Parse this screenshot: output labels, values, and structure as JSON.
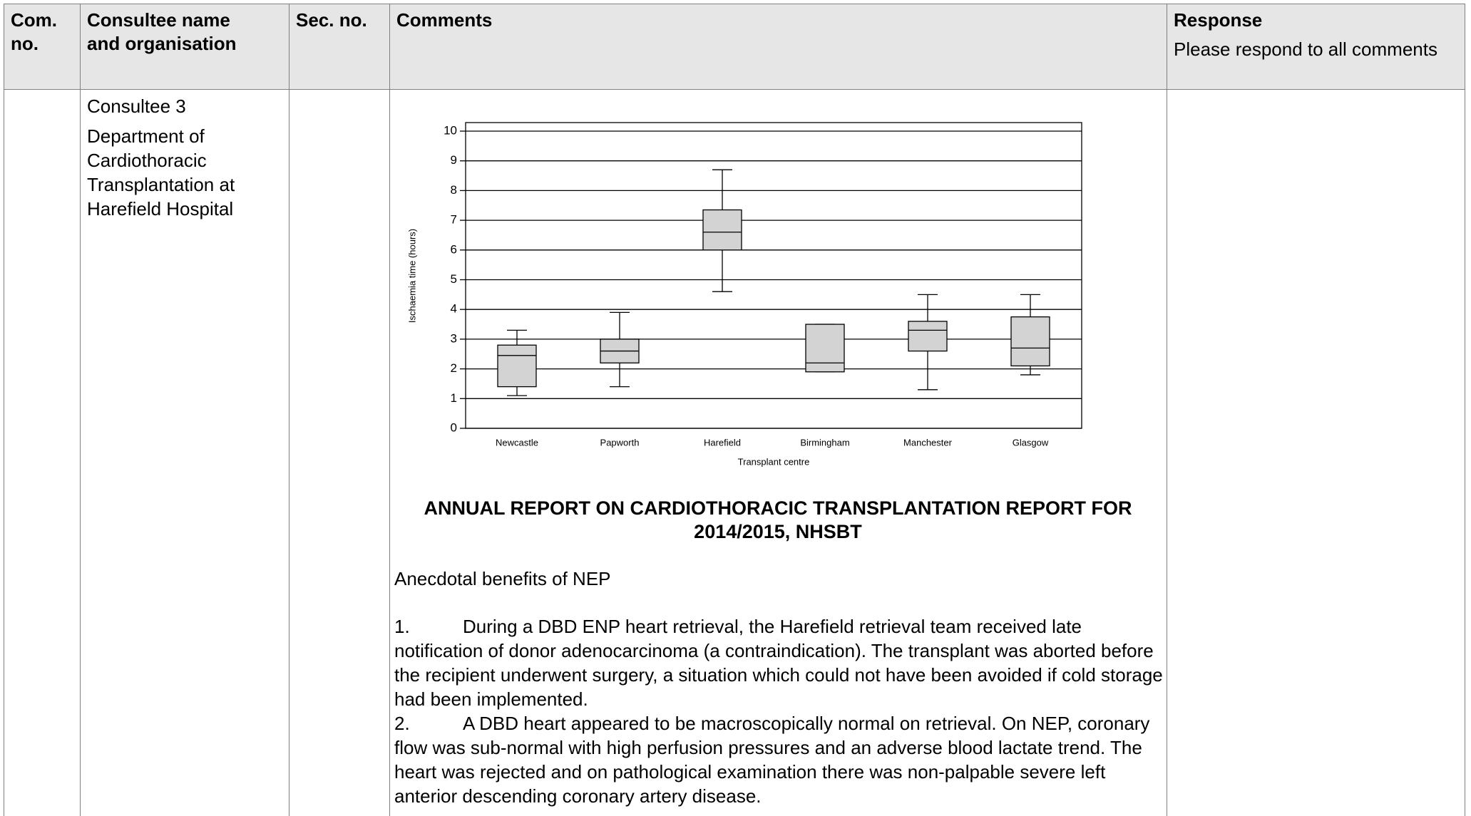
{
  "header": {
    "columns": [
      "Com. no.",
      "Consultee name and organisation",
      "Sec. no.",
      "Comments",
      "Response"
    ],
    "response_note": "Please respond to all comments"
  },
  "row": {
    "consultee": "Consultee 3",
    "organisation": "Department of Cardiothoracic Transplantation at Harefield Hospital"
  },
  "chart_data": {
    "type": "boxplot",
    "ylabel": "Ischaemia time (hours)",
    "xlabel": "Transplant centre",
    "categories": [
      "Newcastle",
      "Papworth",
      "Harefield",
      "Birmingham",
      "Manchester",
      "Glasgow"
    ],
    "min": [
      1.1,
      1.4,
      4.6,
      1.9,
      1.3,
      1.8
    ],
    "q1": [
      1.4,
      2.2,
      6.0,
      1.9,
      2.6,
      2.1
    ],
    "median": [
      2.45,
      2.6,
      6.6,
      2.2,
      3.3,
      2.7
    ],
    "q3": [
      2.8,
      3.0,
      7.35,
      3.5,
      3.6,
      3.75
    ],
    "max": [
      3.3,
      3.9,
      8.7,
      3.5,
      4.5,
      4.5
    ],
    "color": "#d3d3d3",
    "ylim": [
      0,
      10
    ],
    "yticks": [
      0,
      1,
      2,
      3,
      4,
      5,
      6,
      7,
      8,
      9,
      10
    ],
    "grid": true
  },
  "report_title": "ANNUAL REPORT ON CARDIOTHORACIC TRANSPLANTATION REPORT FOR 2014/2015, NHSBT",
  "subtitle": "Anecdotal  benefits of NEP",
  "items": [
    {
      "number": "1.",
      "text": "During a DBD ENP heart retrieval, the Harefield retrieval team received late notification of donor adenocarcinoma (a contraindication). The transplant was aborted before the recipient underwent surgery, a situation which could not have been avoided if cold storage had been implemented."
    },
    {
      "number": "2.",
      "text": "A DBD heart appeared to be macroscopically normal on retrieval. On NEP, coronary flow was sub-normal with high perfusion pressures and an adverse blood lactate trend. The heart was rejected and on pathological examination there was non-palpable severe left anterior descending coronary artery disease."
    }
  ]
}
